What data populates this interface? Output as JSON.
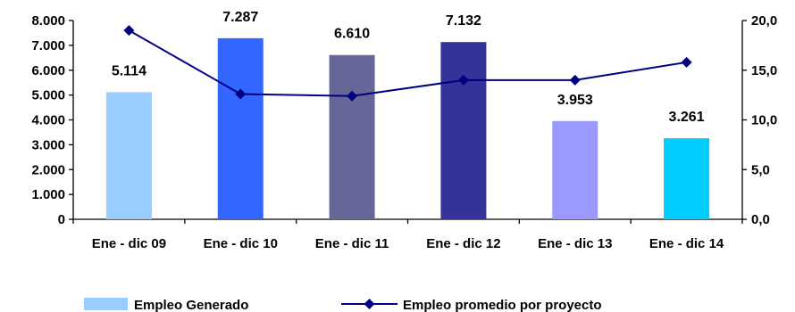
{
  "chart_data": {
    "type": "bar",
    "title": "",
    "categories": [
      "Ene - dic 09",
      "Ene - dic 10",
      "Ene - dic 11",
      "Ene - dic 12",
      "Ene - dic 13",
      "Ene - dic 14"
    ],
    "series": [
      {
        "name": "Empleo Generado",
        "type": "bar",
        "axis": "left",
        "values": [
          5114,
          7287,
          6610,
          7132,
          3953,
          3261
        ],
        "value_labels": [
          "5.114",
          "7.287",
          "6.610",
          "7.132",
          "3.953",
          "3.261"
        ],
        "bar_colors": [
          "#99ccff",
          "#3366ff",
          "#666699",
          "#333399",
          "#9999ff",
          "#00ccff"
        ],
        "legend_color": "#99ccff"
      },
      {
        "name": "Empleo promedio por proyecto",
        "type": "line",
        "axis": "right",
        "values": [
          19.0,
          12.6,
          12.4,
          14.0,
          14.0,
          15.8
        ],
        "color": "#000080",
        "marker": "diamond"
      }
    ],
    "y_left": {
      "range": [
        0,
        8000
      ],
      "ticks": [
        0,
        1000,
        2000,
        3000,
        4000,
        5000,
        6000,
        7000,
        8000
      ],
      "tick_labels": [
        "0",
        "1.000",
        "2.000",
        "3.000",
        "4.000",
        "5.000",
        "6.000",
        "7.000",
        "8.000"
      ]
    },
    "y_right": {
      "range": [
        0,
        20
      ],
      "ticks": [
        0,
        5,
        10,
        15,
        20
      ],
      "tick_labels": [
        "0,0",
        "5,0",
        "10,0",
        "15,0",
        "20,0"
      ]
    },
    "grid": false,
    "legend_position": "bottom"
  }
}
